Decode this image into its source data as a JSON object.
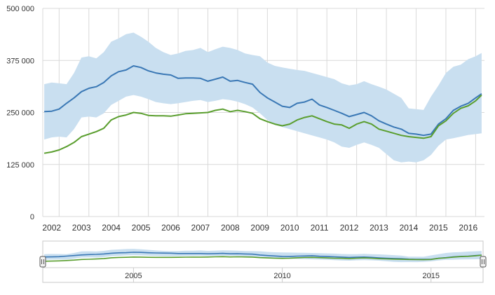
{
  "chart_data": {
    "type": "line",
    "title": "",
    "xlabel": "",
    "ylabel": "",
    "xlim": [
      2001.95,
      2016.75
    ],
    "ylim": [
      0,
      500000
    ],
    "grid": true,
    "legend": "none",
    "y_ticks": [
      {
        "value": 0,
        "label": "0"
      },
      {
        "value": 125000,
        "label": "125 000"
      },
      {
        "value": 250000,
        "label": "250 000"
      },
      {
        "value": 375000,
        "label": "375 000"
      },
      {
        "value": 500000,
        "label": "500 000"
      }
    ],
    "x_ticks": [
      {
        "value": 2002.25,
        "label": "2002"
      },
      {
        "value": 2003.25,
        "label": "2003"
      },
      {
        "value": 2004.25,
        "label": "2004"
      },
      {
        "value": 2005.25,
        "label": "2005"
      },
      {
        "value": 2006.25,
        "label": "2006"
      },
      {
        "value": 2007.25,
        "label": "2007"
      },
      {
        "value": 2008.25,
        "label": "2008"
      },
      {
        "value": 2009.25,
        "label": "2009"
      },
      {
        "value": 2010.25,
        "label": "2010"
      },
      {
        "value": 2011.25,
        "label": "2011"
      },
      {
        "value": 2012.25,
        "label": "2012"
      },
      {
        "value": 2013.25,
        "label": "2013"
      },
      {
        "value": 2014.25,
        "label": "2014"
      },
      {
        "value": 2015.25,
        "label": "2015"
      },
      {
        "value": 2016.25,
        "label": "2016"
      }
    ],
    "x_grid": [
      2002.5,
      2003.5,
      2004.5,
      2005.5,
      2006.5,
      2007.5,
      2008.5,
      2009.5,
      2010.5,
      2011.5,
      2012.5,
      2013.5,
      2014.5,
      2015.5,
      2016.5
    ],
    "x": [
      2002.0,
      2002.25,
      2002.5,
      2002.75,
      2003.0,
      2003.25,
      2003.5,
      2003.75,
      2004.0,
      2004.25,
      2004.5,
      2004.75,
      2005.0,
      2005.25,
      2005.5,
      2005.75,
      2006.0,
      2006.25,
      2006.5,
      2006.75,
      2007.0,
      2007.25,
      2007.5,
      2007.75,
      2008.0,
      2008.25,
      2008.5,
      2008.75,
      2009.0,
      2009.25,
      2009.5,
      2009.75,
      2010.0,
      2010.25,
      2010.5,
      2010.75,
      2011.0,
      2011.25,
      2011.5,
      2011.75,
      2012.0,
      2012.25,
      2012.5,
      2012.75,
      2013.0,
      2013.25,
      2013.5,
      2013.75,
      2014.0,
      2014.25,
      2014.5,
      2014.75,
      2015.0,
      2015.25,
      2015.5,
      2015.75,
      2016.0,
      2016.25,
      2016.5,
      2016.7
    ],
    "band": {
      "name": "",
      "color": "#c9dff0",
      "upper": [
        318000,
        322000,
        320000,
        318000,
        345000,
        382000,
        385000,
        380000,
        395000,
        420000,
        428000,
        438000,
        442000,
        432000,
        420000,
        405000,
        395000,
        388000,
        392000,
        398000,
        400000,
        405000,
        395000,
        402000,
        408000,
        405000,
        400000,
        392000,
        388000,
        385000,
        370000,
        362000,
        358000,
        355000,
        352000,
        350000,
        345000,
        340000,
        335000,
        330000,
        320000,
        315000,
        318000,
        325000,
        318000,
        312000,
        305000,
        295000,
        285000,
        260000,
        258000,
        256000,
        288000,
        315000,
        345000,
        360000,
        365000,
        378000,
        385000,
        393000
      ],
      "lower": [
        185000,
        190000,
        192000,
        190000,
        210000,
        238000,
        240000,
        238000,
        248000,
        268000,
        278000,
        288000,
        292000,
        288000,
        282000,
        275000,
        272000,
        270000,
        272000,
        275000,
        278000,
        280000,
        275000,
        278000,
        282000,
        280000,
        276000,
        270000,
        262000,
        248000,
        232000,
        220000,
        215000,
        210000,
        205000,
        200000,
        195000,
        190000,
        185000,
        178000,
        168000,
        165000,
        172000,
        178000,
        172000,
        165000,
        150000,
        135000,
        130000,
        132000,
        130000,
        135000,
        148000,
        170000,
        185000,
        188000,
        192000,
        196000,
        198000,
        200000
      ]
    },
    "series": [
      {
        "name": "",
        "color": "#3a78b5",
        "values": [
          252000,
          253000,
          258000,
          272000,
          285000,
          300000,
          308000,
          312000,
          322000,
          338000,
          348000,
          352000,
          362000,
          358000,
          350000,
          345000,
          342000,
          340000,
          332000,
          333000,
          333000,
          332000,
          325000,
          330000,
          335000,
          325000,
          327000,
          322000,
          318000,
          298000,
          285000,
          275000,
          265000,
          262000,
          272000,
          275000,
          282000,
          268000,
          262000,
          255000,
          248000,
          240000,
          245000,
          250000,
          242000,
          230000,
          222000,
          215000,
          210000,
          200000,
          198000,
          195000,
          198000,
          222000,
          235000,
          255000,
          265000,
          272000,
          285000,
          295000
        ]
      },
      {
        "name": "",
        "color": "#5a9e2e",
        "values": [
          152000,
          155000,
          160000,
          168000,
          178000,
          192000,
          198000,
          204000,
          212000,
          232000,
          240000,
          244000,
          250000,
          248000,
          243000,
          242000,
          242000,
          241000,
          244000,
          247000,
          248000,
          249000,
          250000,
          255000,
          258000,
          252000,
          255000,
          252000,
          248000,
          235000,
          228000,
          222000,
          218000,
          222000,
          232000,
          238000,
          242000,
          235000,
          228000,
          222000,
          220000,
          212000,
          222000,
          228000,
          222000,
          210000,
          205000,
          200000,
          195000,
          192000,
          190000,
          188000,
          192000,
          218000,
          230000,
          248000,
          260000,
          266000,
          278000,
          292000
        ]
      }
    ],
    "navigator": {
      "x_ticks": [
        {
          "value": 2005.0,
          "label": "2005"
        },
        {
          "value": 2010.0,
          "label": "2010"
        },
        {
          "value": 2015.0,
          "label": "2015"
        }
      ]
    }
  }
}
